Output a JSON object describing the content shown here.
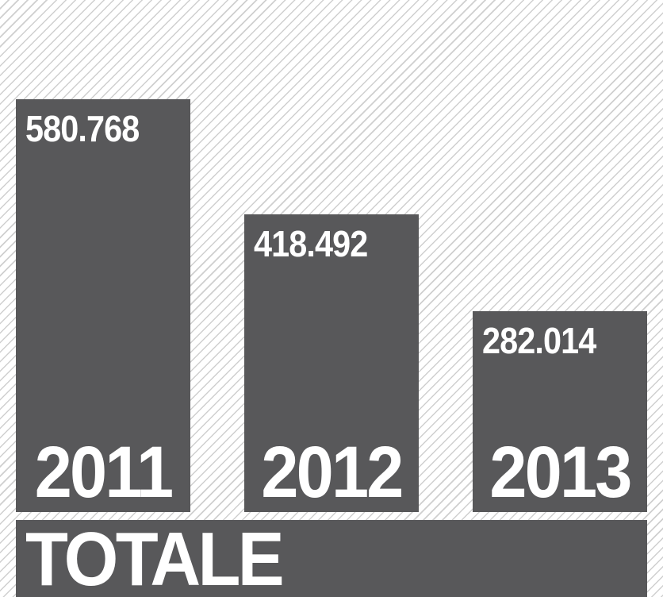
{
  "chart_data": {
    "type": "bar",
    "categories": [
      "2011",
      "2012",
      "2013"
    ],
    "values": [
      580768,
      418492,
      282014
    ],
    "value_labels": [
      "580.768",
      "418.492",
      "282.014"
    ],
    "title": "",
    "xlabel": "",
    "ylabel": "",
    "grid": false,
    "legend": "none",
    "bar_color": "#58585a",
    "text_color": "#ffffff",
    "background_pattern": "diagonal-hatch"
  },
  "footer": {
    "label": "TOTALE"
  }
}
